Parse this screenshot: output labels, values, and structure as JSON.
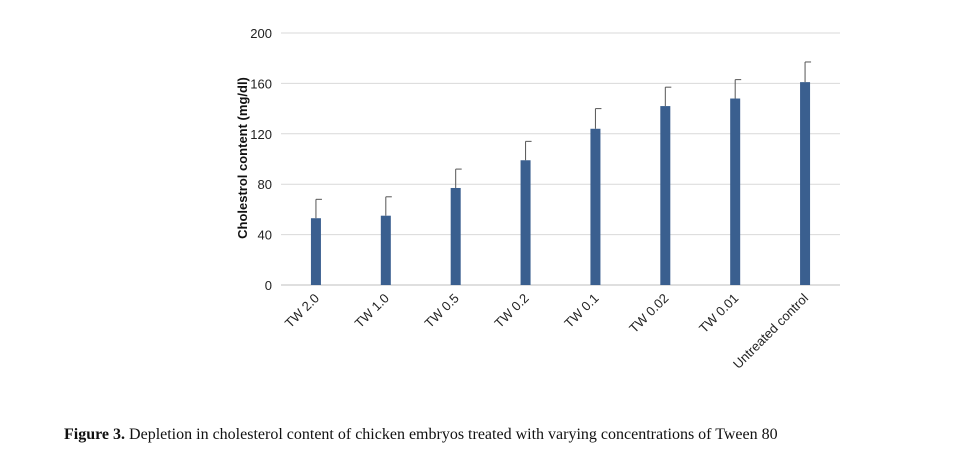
{
  "chart_data": {
    "type": "bar",
    "categories": [
      "TW 2.0",
      "TW 1.0",
      "TW 0.5",
      "TW 0.2",
      "TW 0.1",
      "TW 0.02",
      "TW 0.01",
      "Untreated control"
    ],
    "values": [
      53,
      55,
      77,
      99,
      124,
      142,
      148,
      161
    ],
    "error_upper": [
      68,
      70,
      92,
      114,
      140,
      157,
      163,
      177
    ],
    "ylabel": "Cholestrol content  (mg/dl)",
    "xlabel": "",
    "ylim": [
      0,
      200
    ],
    "yticks": [
      0,
      40,
      80,
      120,
      160,
      200
    ],
    "grid": true,
    "legend": "none",
    "colors": {
      "bar": "#3a5f8f",
      "grid": "#d9d9d9",
      "error_bar": "#555555"
    }
  },
  "caption": {
    "label": "Figure 3.",
    "text": " Depletion in cholesterol content of chicken embryos treated with varying concentrations of Tween 80"
  }
}
